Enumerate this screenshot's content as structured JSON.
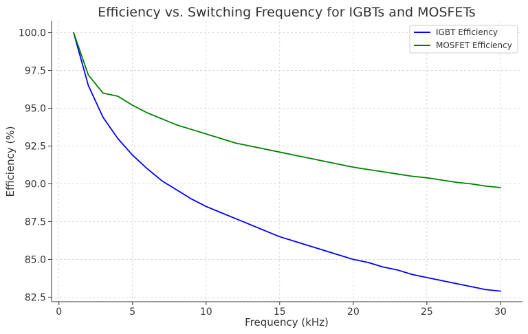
{
  "chart_data": {
    "type": "line",
    "title": "Efficiency vs. Switching Frequency for IGBTs and MOSFETs",
    "xlabel": "Frequency (kHz)",
    "ylabel": "Efficiency (%)",
    "xlim": [
      -0.5,
      31.5
    ],
    "ylim": [
      82.2,
      100.8
    ],
    "xticks": [
      0,
      5,
      10,
      15,
      20,
      25,
      30
    ],
    "yticks": [
      82.5,
      85.0,
      87.5,
      90.0,
      92.5,
      95.0,
      97.5,
      100.0
    ],
    "xtick_labels": [
      "0",
      "5",
      "10",
      "15",
      "20",
      "25",
      "30"
    ],
    "ytick_labels": [
      "82.5",
      "85.0",
      "87.5",
      "90.0",
      "92.5",
      "95.0",
      "97.5",
      "100.0"
    ],
    "grid": true,
    "legend_position": "top-right",
    "x": [
      1,
      2,
      3,
      4,
      5,
      6,
      7,
      8,
      9,
      10,
      11,
      12,
      13,
      14,
      15,
      16,
      17,
      18,
      19,
      20,
      21,
      22,
      23,
      24,
      25,
      26,
      27,
      28,
      29,
      30
    ],
    "series": [
      {
        "name": "IGBT Efficiency",
        "color": "#0000ff",
        "values": [
          100.0,
          96.5,
          94.4,
          93.0,
          91.9,
          91.0,
          90.2,
          89.6,
          89.0,
          88.5,
          88.1,
          87.7,
          87.3,
          86.9,
          86.5,
          86.2,
          85.9,
          85.6,
          85.3,
          85.0,
          84.8,
          84.5,
          84.3,
          84.0,
          83.8,
          83.6,
          83.4,
          83.2,
          83.0,
          82.9
        ]
      },
      {
        "name": "MOSFET Efficiency",
        "color": "#008000",
        "values": [
          100.0,
          97.2,
          96.0,
          95.8,
          95.2,
          94.7,
          94.3,
          93.9,
          93.6,
          93.3,
          93.0,
          92.7,
          92.5,
          92.3,
          92.1,
          91.9,
          91.7,
          91.5,
          91.3,
          91.1,
          90.95,
          90.8,
          90.65,
          90.5,
          90.4,
          90.25,
          90.1,
          90.0,
          89.85,
          89.75
        ]
      }
    ]
  }
}
